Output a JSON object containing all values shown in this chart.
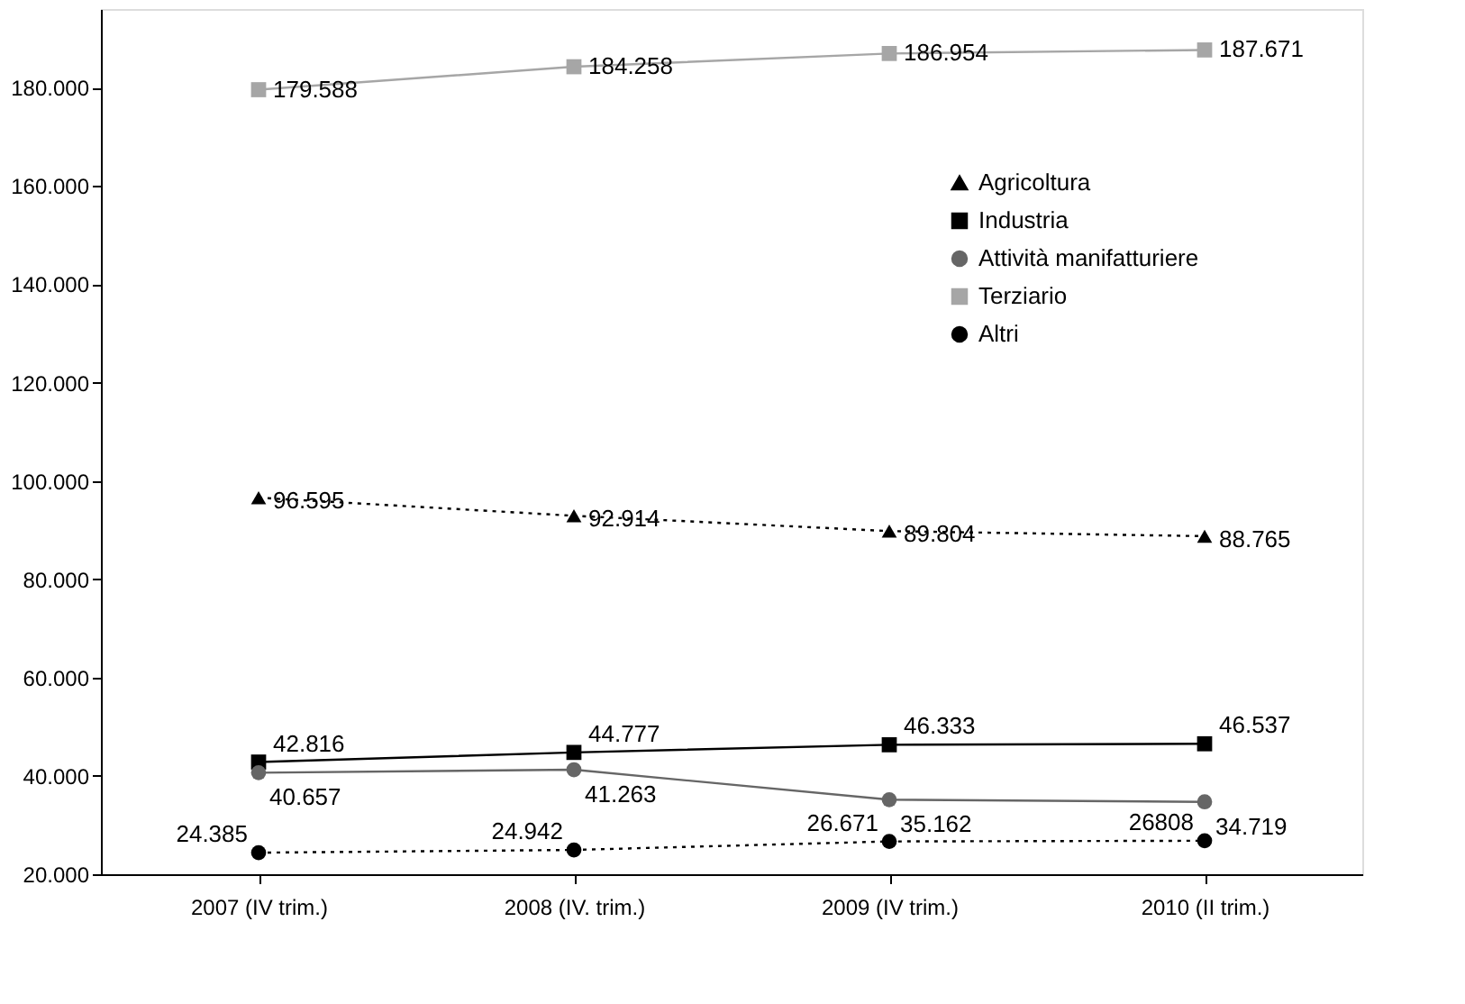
{
  "chart_data": {
    "type": "line",
    "categories": [
      "2007 (IV trim.)",
      "2008 (IV. trim.)",
      "2009 (IV trim.)",
      "2010 (II trim.)"
    ],
    "series": [
      {
        "name": "Agricoltura",
        "color": "#000000",
        "marker": "triangle",
        "line_style": "dotted",
        "values": [
          96595,
          92914,
          89804,
          88765
        ],
        "value_labels": [
          "96.595",
          "92.914",
          "89.804",
          "88.765"
        ]
      },
      {
        "name": "Industria",
        "color": "#000000",
        "marker": "square",
        "line_style": "solid",
        "values": [
          42816,
          44777,
          46333,
          46537
        ],
        "value_labels": [
          "42.816",
          "44.777",
          "46.333",
          "46.537"
        ]
      },
      {
        "name": "Attività manifatturiere",
        "color": "#666666",
        "marker": "circle",
        "line_style": "solid",
        "values": [
          40657,
          41263,
          35162,
          34719
        ],
        "value_labels": [
          "40.657",
          "41.263",
          "35.162",
          "34.719"
        ]
      },
      {
        "name": "Terziario",
        "color": "#a6a6a6",
        "marker": "square",
        "line_style": "solid",
        "values": [
          179588,
          184258,
          186954,
          187671
        ],
        "value_labels": [
          "179.588",
          "184.258",
          "186.954",
          "187.671"
        ]
      },
      {
        "name": "Altri",
        "color": "#000000",
        "marker": "circle",
        "line_style": "dotted",
        "values": [
          24385,
          24942,
          26671,
          26808
        ],
        "value_labels": [
          "24.385",
          "24.942",
          "26.671",
          "26808"
        ]
      }
    ],
    "ylim": [
      20000,
      196000
    ],
    "yticks": [
      {
        "value": 20000,
        "label": "20.000"
      },
      {
        "value": 40000,
        "label": "40.000"
      },
      {
        "value": 60000,
        "label": "60.000"
      },
      {
        "value": 80000,
        "label": "80.000"
      },
      {
        "value": 100000,
        "label": "100.000"
      },
      {
        "value": 120000,
        "label": "120.000"
      },
      {
        "value": 140000,
        "label": "140.000"
      },
      {
        "value": 160000,
        "label": "160.000"
      },
      {
        "value": 180000,
        "label": "180.000"
      }
    ],
    "grid": false,
    "legend": "top right"
  }
}
